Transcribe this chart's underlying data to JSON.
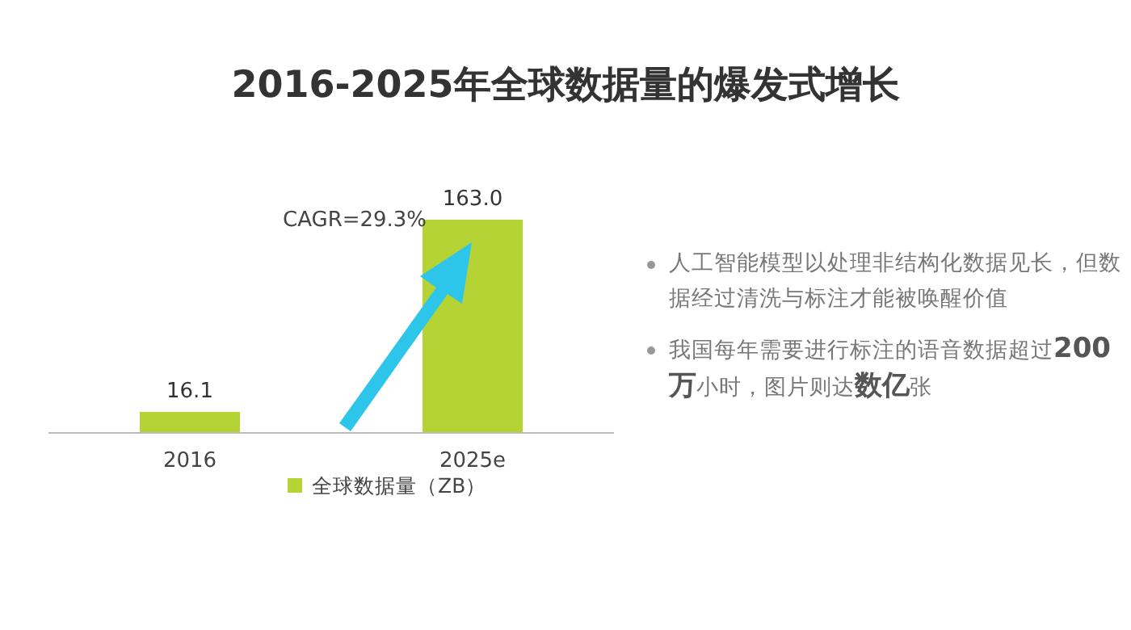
{
  "chart_data": {
    "type": "bar",
    "title": "2016-2025年全球数据量的爆发式增长",
    "categories": [
      "2016",
      "2025e"
    ],
    "series": [
      {
        "name": "全球数据量（ZB）",
        "color": "#b5d334",
        "values": [
          16.1,
          163.0
        ],
        "value_labels": [
          "16.1",
          "163.0"
        ]
      }
    ],
    "legend": "bottom",
    "annotations": [
      "CAGR=29.3%",
      "人工智能模型以处理非结构化数据见长，但数据经过清洗与标注才能被唤醒价值",
      "我国每年需要进行标注的语音数据超过**200万**小时，图片则达**数亿**张"
    ]
  }
}
